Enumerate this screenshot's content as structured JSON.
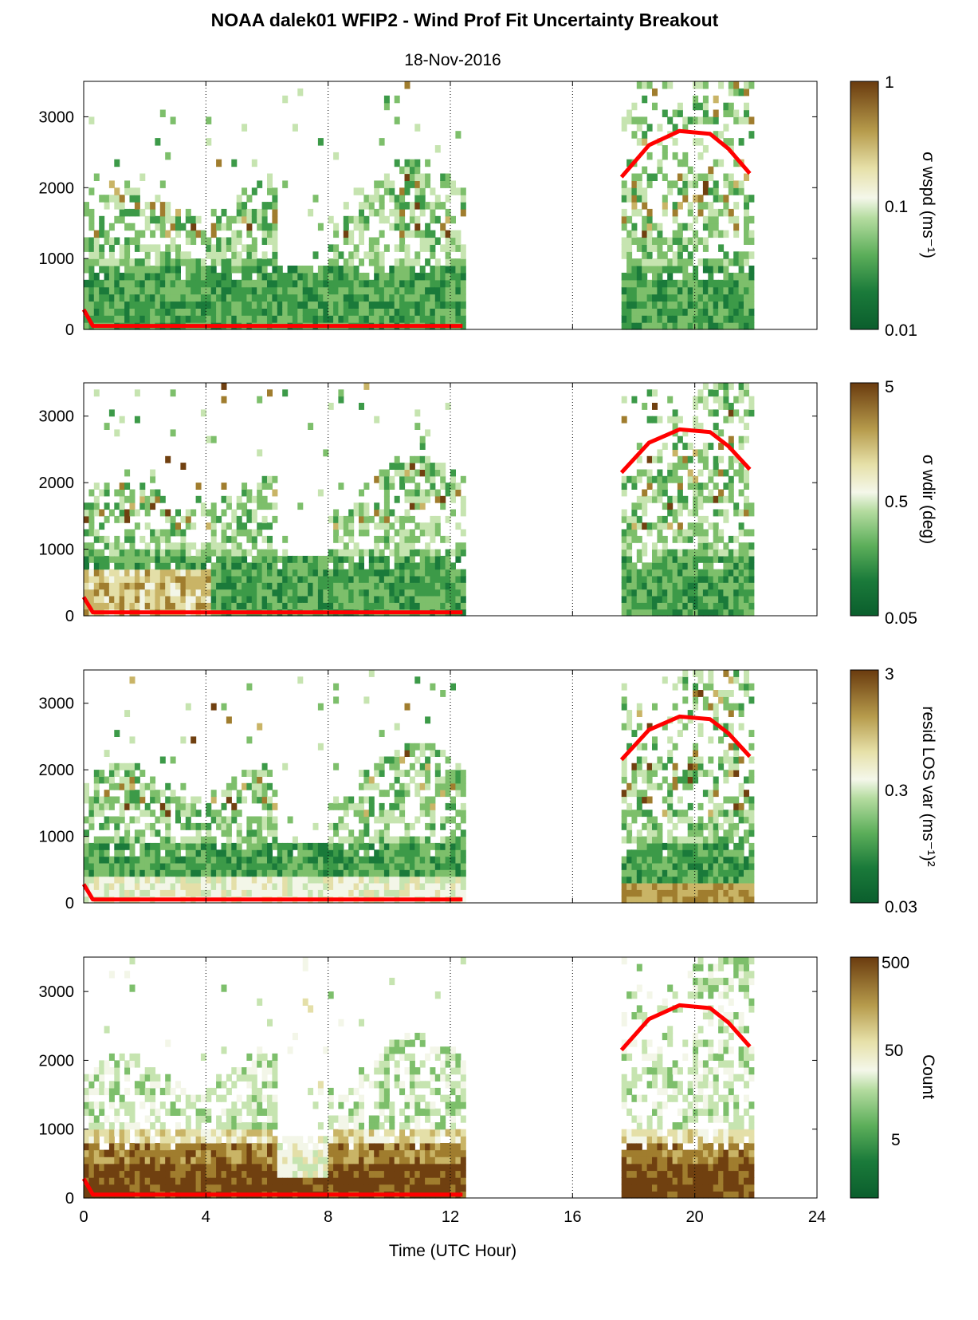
{
  "title": "NOAA dalek01 WFIP2 - Wind Prof Fit Uncertainty Breakout",
  "subtitle": "18-Nov-2016",
  "chart_data": {
    "type": "heatmap",
    "xlabel": "Time (UTC Hour)",
    "xlim": [
      0,
      24
    ],
    "xticks": [
      "0",
      "4",
      "8",
      "12",
      "16",
      "20",
      "24"
    ],
    "ylim": [
      0,
      3500
    ],
    "yticks": [
      "0",
      "1000",
      "2000",
      "3000"
    ],
    "data_time_ranges": [
      [
        0,
        12.5
      ],
      [
        17.6,
        21.8
      ]
    ],
    "colormap": [
      "#0b5e2d",
      "#1a7a3a",
      "#3c9a48",
      "#7dbf6b",
      "#c6e4b0",
      "#f3f6e8",
      "#e4dfa8",
      "#c9b466",
      "#a07d2e",
      "#704010"
    ],
    "red_line": {
      "color": "#ff0000",
      "segments": [
        {
          "x": [
            0,
            0.3,
            12.4
          ],
          "y": [
            280,
            50,
            50
          ]
        },
        {
          "x": [
            17.6,
            18.5,
            19.5,
            20.5,
            21.1,
            21.8
          ],
          "y": [
            2150,
            2600,
            2800,
            2760,
            2550,
            2200
          ]
        }
      ]
    },
    "panels": [
      {
        "name": "wspd",
        "cblabel": "σ wspd (ms⁻¹)",
        "cbticks": [
          "1",
          "0.1",
          "0.01"
        ],
        "scale": "log",
        "cbrange": [
          0.01,
          1
        ]
      },
      {
        "name": "wdir",
        "cblabel": "σ wdir (deg)",
        "cbticks": [
          "5",
          "0.5",
          "0.05"
        ],
        "scale": "log",
        "cbrange": [
          0.05,
          5
        ]
      },
      {
        "name": "resid",
        "cblabel": "resid LOS var (ms⁻¹)²",
        "cbticks": [
          "3",
          "0.3",
          "0.03"
        ],
        "scale": "log",
        "cbrange": [
          0.03,
          3
        ]
      },
      {
        "name": "count",
        "cblabel": "Count",
        "cbticks": [
          "500",
          "50",
          "5"
        ],
        "scale": "log",
        "cbrange": [
          1,
          500
        ]
      }
    ]
  }
}
